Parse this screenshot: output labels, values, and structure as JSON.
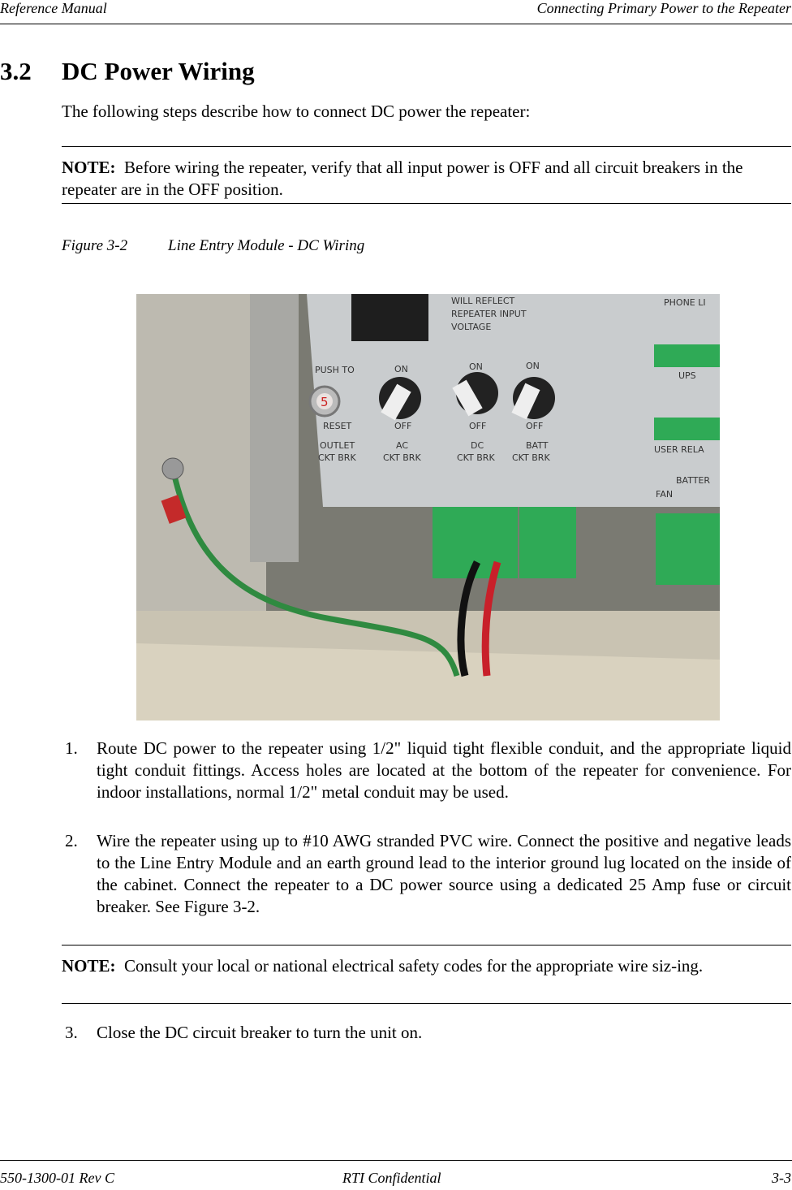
{
  "header": {
    "left": "Reference Manual",
    "right": "Connecting Primary Power to the Repeater"
  },
  "section": {
    "number": "3.2",
    "title": "DC Power Wiring",
    "intro": "The following steps describe how to connect DC power the repeater:"
  },
  "note1": {
    "label": "NOTE:",
    "text": "Before wiring the repeater, verify that all input power is OFF and all circuit breakers in the repeater are in the OFF position."
  },
  "figure": {
    "number": "Figure 3-2",
    "title": "Line Entry Module - DC Wiring",
    "photo_labels": [
      "WILL REFLECT",
      "REPEATER INPUT",
      "VOLTAGE",
      "PHONE LI",
      "PUSH TO",
      "RESET",
      "OUTLET",
      "CKT BRK",
      "ON",
      "OFF",
      "AC",
      "CKT BRK",
      "ON",
      "OFF",
      "DC",
      "CKT BRK",
      "ON",
      "OFF",
      "BATT",
      "CKT BRK",
      "UPS",
      "USER RELA",
      "BATTER",
      "FAN",
      "5"
    ]
  },
  "steps": [
    {
      "number": "1.",
      "text": "Route DC power to the repeater using 1/2\" liquid tight flexible conduit, and the appropriate liquid tight conduit fittings. Access holes are located at the bottom of the repeater for convenience. For indoor installations, normal 1/2\" metal conduit may be used."
    },
    {
      "number": "2.",
      "text": "Wire the repeater using up to #10 AWG stranded PVC wire. Connect the positive and negative leads to the Line Entry Module and an earth ground lead to the interior ground lug located on the inside of the cabinet. Connect the repeater to a DC power source using a dedicated 25 Amp fuse or circuit breaker. See Figure 3-2."
    }
  ],
  "note2": {
    "label": "NOTE:",
    "text": "Consult your local or national electrical safety codes for the appropriate wire siz-ing."
  },
  "step3": {
    "number": "3.",
    "text": "Close the DC circuit breaker to turn the unit on."
  },
  "footer": {
    "left": "550-1300-01 Rev C",
    "center": "RTI Confidential",
    "right": "3-3"
  }
}
